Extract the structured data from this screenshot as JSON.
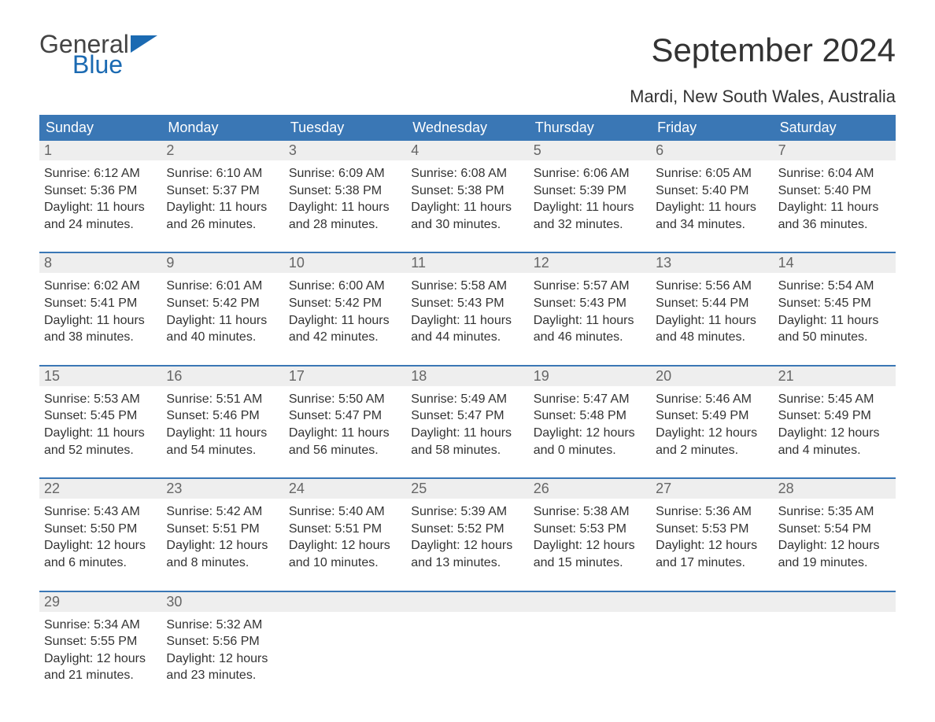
{
  "logo": {
    "text_top": "General",
    "text_bottom": "Blue",
    "flag_color": "#1b6ab2"
  },
  "title": "September 2024",
  "location": "Mardi, New South Wales, Australia",
  "colors": {
    "header_bg": "#3a77b5",
    "header_text": "#ffffff",
    "daynum_bg": "#eeeeee",
    "daynum_text": "#666666",
    "body_text": "#333333",
    "week_border": "#3a77b5",
    "page_bg": "#ffffff"
  },
  "weekdays": [
    "Sunday",
    "Monday",
    "Tuesday",
    "Wednesday",
    "Thursday",
    "Friday",
    "Saturday"
  ],
  "weeks": [
    [
      {
        "num": "1",
        "sunrise": "Sunrise: 6:12 AM",
        "sunset": "Sunset: 5:36 PM",
        "daylight": "Daylight: 11 hours and 24 minutes."
      },
      {
        "num": "2",
        "sunrise": "Sunrise: 6:10 AM",
        "sunset": "Sunset: 5:37 PM",
        "daylight": "Daylight: 11 hours and 26 minutes."
      },
      {
        "num": "3",
        "sunrise": "Sunrise: 6:09 AM",
        "sunset": "Sunset: 5:38 PM",
        "daylight": "Daylight: 11 hours and 28 minutes."
      },
      {
        "num": "4",
        "sunrise": "Sunrise: 6:08 AM",
        "sunset": "Sunset: 5:38 PM",
        "daylight": "Daylight: 11 hours and 30 minutes."
      },
      {
        "num": "5",
        "sunrise": "Sunrise: 6:06 AM",
        "sunset": "Sunset: 5:39 PM",
        "daylight": "Daylight: 11 hours and 32 minutes."
      },
      {
        "num": "6",
        "sunrise": "Sunrise: 6:05 AM",
        "sunset": "Sunset: 5:40 PM",
        "daylight": "Daylight: 11 hours and 34 minutes."
      },
      {
        "num": "7",
        "sunrise": "Sunrise: 6:04 AM",
        "sunset": "Sunset: 5:40 PM",
        "daylight": "Daylight: 11 hours and 36 minutes."
      }
    ],
    [
      {
        "num": "8",
        "sunrise": "Sunrise: 6:02 AM",
        "sunset": "Sunset: 5:41 PM",
        "daylight": "Daylight: 11 hours and 38 minutes."
      },
      {
        "num": "9",
        "sunrise": "Sunrise: 6:01 AM",
        "sunset": "Sunset: 5:42 PM",
        "daylight": "Daylight: 11 hours and 40 minutes."
      },
      {
        "num": "10",
        "sunrise": "Sunrise: 6:00 AM",
        "sunset": "Sunset: 5:42 PM",
        "daylight": "Daylight: 11 hours and 42 minutes."
      },
      {
        "num": "11",
        "sunrise": "Sunrise: 5:58 AM",
        "sunset": "Sunset: 5:43 PM",
        "daylight": "Daylight: 11 hours and 44 minutes."
      },
      {
        "num": "12",
        "sunrise": "Sunrise: 5:57 AM",
        "sunset": "Sunset: 5:43 PM",
        "daylight": "Daylight: 11 hours and 46 minutes."
      },
      {
        "num": "13",
        "sunrise": "Sunrise: 5:56 AM",
        "sunset": "Sunset: 5:44 PM",
        "daylight": "Daylight: 11 hours and 48 minutes."
      },
      {
        "num": "14",
        "sunrise": "Sunrise: 5:54 AM",
        "sunset": "Sunset: 5:45 PM",
        "daylight": "Daylight: 11 hours and 50 minutes."
      }
    ],
    [
      {
        "num": "15",
        "sunrise": "Sunrise: 5:53 AM",
        "sunset": "Sunset: 5:45 PM",
        "daylight": "Daylight: 11 hours and 52 minutes."
      },
      {
        "num": "16",
        "sunrise": "Sunrise: 5:51 AM",
        "sunset": "Sunset: 5:46 PM",
        "daylight": "Daylight: 11 hours and 54 minutes."
      },
      {
        "num": "17",
        "sunrise": "Sunrise: 5:50 AM",
        "sunset": "Sunset: 5:47 PM",
        "daylight": "Daylight: 11 hours and 56 minutes."
      },
      {
        "num": "18",
        "sunrise": "Sunrise: 5:49 AM",
        "sunset": "Sunset: 5:47 PM",
        "daylight": "Daylight: 11 hours and 58 minutes."
      },
      {
        "num": "19",
        "sunrise": "Sunrise: 5:47 AM",
        "sunset": "Sunset: 5:48 PM",
        "daylight": "Daylight: 12 hours and 0 minutes."
      },
      {
        "num": "20",
        "sunrise": "Sunrise: 5:46 AM",
        "sunset": "Sunset: 5:49 PM",
        "daylight": "Daylight: 12 hours and 2 minutes."
      },
      {
        "num": "21",
        "sunrise": "Sunrise: 5:45 AM",
        "sunset": "Sunset: 5:49 PM",
        "daylight": "Daylight: 12 hours and 4 minutes."
      }
    ],
    [
      {
        "num": "22",
        "sunrise": "Sunrise: 5:43 AM",
        "sunset": "Sunset: 5:50 PM",
        "daylight": "Daylight: 12 hours and 6 minutes."
      },
      {
        "num": "23",
        "sunrise": "Sunrise: 5:42 AM",
        "sunset": "Sunset: 5:51 PM",
        "daylight": "Daylight: 12 hours and 8 minutes."
      },
      {
        "num": "24",
        "sunrise": "Sunrise: 5:40 AM",
        "sunset": "Sunset: 5:51 PM",
        "daylight": "Daylight: 12 hours and 10 minutes."
      },
      {
        "num": "25",
        "sunrise": "Sunrise: 5:39 AM",
        "sunset": "Sunset: 5:52 PM",
        "daylight": "Daylight: 12 hours and 13 minutes."
      },
      {
        "num": "26",
        "sunrise": "Sunrise: 5:38 AM",
        "sunset": "Sunset: 5:53 PM",
        "daylight": "Daylight: 12 hours and 15 minutes."
      },
      {
        "num": "27",
        "sunrise": "Sunrise: 5:36 AM",
        "sunset": "Sunset: 5:53 PM",
        "daylight": "Daylight: 12 hours and 17 minutes."
      },
      {
        "num": "28",
        "sunrise": "Sunrise: 5:35 AM",
        "sunset": "Sunset: 5:54 PM",
        "daylight": "Daylight: 12 hours and 19 minutes."
      }
    ],
    [
      {
        "num": "29",
        "sunrise": "Sunrise: 5:34 AM",
        "sunset": "Sunset: 5:55 PM",
        "daylight": "Daylight: 12 hours and 21 minutes."
      },
      {
        "num": "30",
        "sunrise": "Sunrise: 5:32 AM",
        "sunset": "Sunset: 5:56 PM",
        "daylight": "Daylight: 12 hours and 23 minutes."
      },
      null,
      null,
      null,
      null,
      null
    ]
  ]
}
